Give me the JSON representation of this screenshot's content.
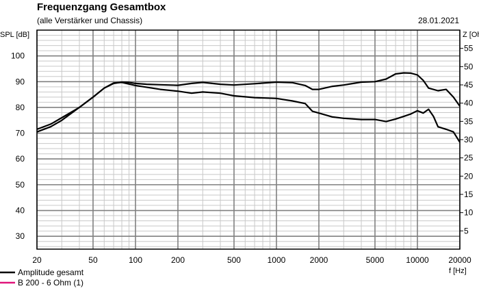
{
  "chart_data": {
    "type": "line",
    "title": "Frequenzgang Gesamtbox",
    "subtitle": "(alle Verstärker und Chassis)",
    "date": "28.01.2021",
    "x_scale": "log",
    "xlim": [
      20,
      20000
    ],
    "ylim": [
      25,
      110
    ],
    "y2lim": [
      0,
      60
    ],
    "grid": true,
    "ylabel": "SPL [dB]",
    "y2label": "Z [Ohm]",
    "xlabel": "f [Hz]",
    "x_ticks": [
      {
        "value": 20,
        "label": "20"
      },
      {
        "value": 50,
        "label": "50"
      },
      {
        "value": 100,
        "label": "100"
      },
      {
        "value": 200,
        "label": "200"
      },
      {
        "value": 500,
        "label": "500"
      },
      {
        "value": 1000,
        "label": "1000"
      },
      {
        "value": 2000,
        "label": "2000"
      },
      {
        "value": 5000,
        "label": "5000"
      },
      {
        "value": 10000,
        "label": "10000"
      },
      {
        "value": 20000,
        "label": "20000"
      }
    ],
    "y_ticks": [
      "30",
      "40",
      "50",
      "60",
      "70",
      "80",
      "90",
      "100"
    ],
    "y_tick_values": [
      30,
      40,
      50,
      60,
      70,
      80,
      90,
      100
    ],
    "y2_ticks": [
      "5",
      "10",
      "15",
      "20",
      "25",
      "30",
      "35",
      "40",
      "45",
      "50",
      "55"
    ],
    "y2_tick_values": [
      5,
      10,
      15,
      20,
      25,
      30,
      35,
      40,
      45,
      50,
      55
    ],
    "series": [
      {
        "name": "Amplitude gesamt",
        "color": "#000000",
        "x": [
          20,
          25,
          30,
          40,
          50,
          60,
          70,
          80,
          90,
          100,
          120,
          150,
          200,
          250,
          300,
          400,
          500,
          700,
          1000,
          1300,
          1600,
          1800,
          2000,
          2500,
          3000,
          4000,
          5000,
          6000,
          7000,
          8000,
          9000,
          10000,
          11000,
          12000,
          14000,
          16000,
          18000,
          20000
        ],
        "values": [
          70.5,
          72.5,
          75,
          80,
          84,
          87.5,
          89.3,
          89.8,
          89.7,
          89.3,
          89,
          88.8,
          88.6,
          89.3,
          89.7,
          89,
          88.7,
          89.2,
          89.8,
          89.6,
          88.5,
          87,
          87,
          88.2,
          88.7,
          89.8,
          90,
          91,
          93,
          93.4,
          93.3,
          92.6,
          90.5,
          87.5,
          86.5,
          87,
          84,
          80.5
        ]
      },
      {
        "name": "B 200 - 6 Ohm (1)",
        "color": "#e0147a",
        "x": [],
        "values": []
      },
      {
        "name": "",
        "color": "#000000",
        "x": [
          20,
          25,
          30,
          40,
          50,
          60,
          70,
          80,
          100,
          150,
          200,
          250,
          300,
          400,
          500,
          700,
          1000,
          1300,
          1600,
          1800,
          2000,
          2500,
          3000,
          4000,
          5000,
          6000,
          7000,
          8000,
          9000,
          10000,
          11000,
          12000,
          13000,
          14000,
          16000,
          18000,
          20000
        ],
        "values": [
          71.5,
          73.5,
          76,
          80,
          84,
          87.5,
          89.5,
          89.7,
          88.5,
          87,
          86.3,
          85.5,
          86,
          85.5,
          84.5,
          83.8,
          83.5,
          82.5,
          81.5,
          78.5,
          77.8,
          76.3,
          75.8,
          75.3,
          75.3,
          74.5,
          75.5,
          76.5,
          77.5,
          78.7,
          77.8,
          79.3,
          76.5,
          72.5,
          71.5,
          70.5,
          66.5
        ]
      }
    ],
    "legend_position": "bottom-left"
  }
}
